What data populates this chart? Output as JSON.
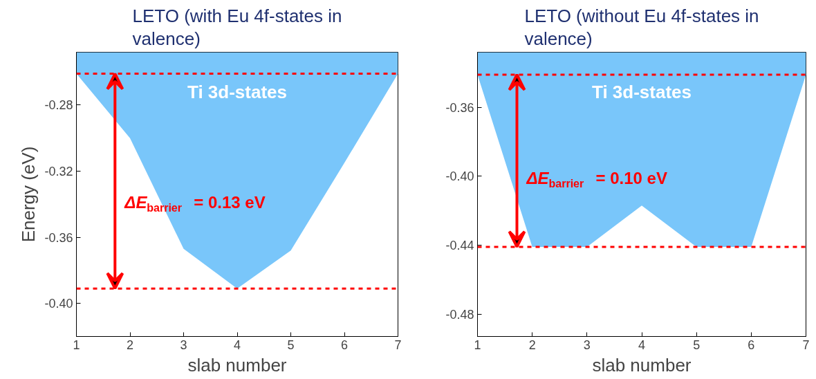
{
  "chart_data": [
    {
      "type": "area",
      "title": "LETO (with Eu 4f-states in valence)",
      "xlabel": "slab number",
      "ylabel": "Energy (eV)",
      "x": [
        1,
        2,
        3,
        4,
        5,
        6,
        7
      ],
      "series": [
        {
          "color": "#79c6fa",
          "values": [
            -0.261,
            -0.3,
            -0.367,
            -0.391,
            -0.368,
            -0.315,
            -0.261
          ]
        }
      ],
      "xlim": [
        1,
        7
      ],
      "xticks": [
        1,
        2,
        3,
        4,
        5,
        6,
        7
      ],
      "ylim": [
        -0.42,
        -0.248
      ],
      "yticks": [
        -0.28,
        -0.32,
        -0.36,
        {
          "value": -0.4,
          "label": "-0.40"
        }
      ],
      "ref_lines": [
        {
          "axis": "y",
          "value": -0.261,
          "color": "#ff0000",
          "line_style": "dashed"
        },
        {
          "axis": "y",
          "value": -0.391,
          "color": "#ff0000",
          "line_style": "dashed"
        }
      ],
      "annotations": [
        "Ti 3d-states",
        "ΔE$_{barrier}$ = 0.13 eV"
      ],
      "grid": false
    },
    {
      "type": "area",
      "title": "LETO (without Eu 4f-states in valence)",
      "xlabel": "slab number",
      "x": [
        1,
        2,
        3,
        4,
        5,
        6,
        7
      ],
      "series": [
        {
          "color": "#79c6fa",
          "values": [
            -0.341,
            -0.441,
            -0.441,
            -0.417,
            -0.441,
            -0.441,
            -0.341
          ]
        }
      ],
      "xlim": [
        1,
        7
      ],
      "xticks": [
        1,
        2,
        3,
        4,
        5,
        6,
        7
      ],
      "ylim": [
        -0.493,
        -0.328
      ],
      "yticks": [
        -0.36,
        {
          "value": -0.4,
          "label": "-0.40"
        },
        -0.44,
        -0.48
      ],
      "ref_lines": [
        {
          "axis": "y",
          "value": -0.341,
          "color": "#ff0000",
          "line_style": "dashed"
        },
        {
          "axis": "y",
          "value": -0.441,
          "color": "#ff0000",
          "line_style": "dashed"
        }
      ],
      "annotations": [
        "Ti 3d-states",
        "ΔE$_{barrier}$ = 0.10 eV"
      ],
      "grid": false
    }
  ]
}
